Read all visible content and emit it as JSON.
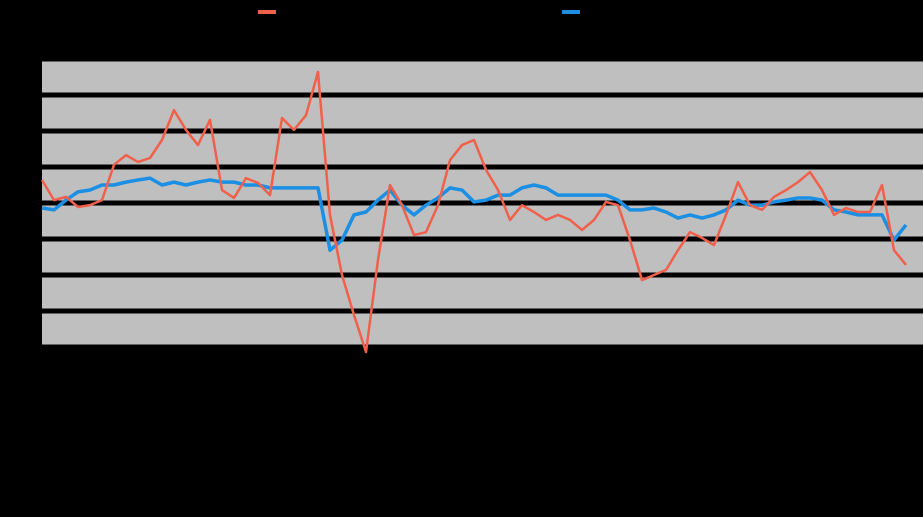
{
  "chart_data": {
    "type": "line",
    "x": [
      0,
      1,
      2,
      3,
      4,
      5,
      6,
      7,
      8,
      9,
      10,
      11,
      12,
      13,
      14,
      15,
      16,
      17,
      18,
      19,
      20,
      21,
      22,
      23,
      24,
      25,
      26,
      27,
      28,
      29,
      30,
      31,
      32,
      33,
      34,
      35,
      36,
      37,
      38,
      39,
      40,
      41,
      42,
      43,
      44,
      45,
      46,
      47,
      48,
      49,
      50,
      51,
      52,
      53,
      54,
      55,
      56,
      57,
      58,
      59,
      60,
      61,
      62,
      63,
      64,
      65,
      66,
      67,
      68,
      69,
      70,
      71,
      72
    ],
    "xlim": [
      0,
      72
    ],
    "ylim": [
      -4,
      4
    ],
    "yticks": [
      -4,
      -3,
      -2,
      -1,
      0,
      1,
      2,
      3,
      4
    ],
    "grid": true,
    "series": [
      {
        "color": "#f0604a",
        "values": [
          0.64,
          0.08,
          0.17,
          -0.11,
          -0.06,
          0.08,
          1.06,
          1.33,
          1.14,
          1.25,
          1.75,
          2.58,
          2.03,
          1.61,
          2.31,
          0.36,
          0.14,
          0.69,
          0.56,
          0.22,
          2.36,
          2.03,
          2.44,
          3.64,
          -0.33,
          -2.0,
          -3.11,
          -4.14,
          -1.58,
          0.5,
          -0.06,
          -0.89,
          -0.81,
          -0.06,
          1.19,
          1.61,
          1.75,
          0.92,
          0.36,
          -0.47,
          -0.06,
          -0.25,
          -0.47,
          -0.33,
          -0.47,
          -0.75,
          -0.47,
          0.03,
          -0.06,
          -1.03,
          -2.14,
          -2.0,
          -1.86,
          -1.31,
          -0.81,
          -0.97,
          -1.17,
          -0.33,
          0.58,
          -0.06,
          -0.19,
          0.17,
          0.36,
          0.58,
          0.86,
          0.36,
          -0.33,
          -0.14,
          -0.25,
          -0.25,
          0.5,
          -1.31,
          -1.72
        ]
      },
      {
        "color": "#1a8fe3",
        "values": [
          -0.14,
          -0.19,
          0.08,
          0.31,
          0.36,
          0.5,
          0.5,
          0.58,
          0.64,
          0.69,
          0.5,
          0.58,
          0.5,
          0.58,
          0.64,
          0.58,
          0.58,
          0.5,
          0.5,
          0.42,
          0.42,
          0.42,
          0.42,
          0.42,
          -1.31,
          -1.03,
          -0.33,
          -0.25,
          0.08,
          0.36,
          -0.06,
          -0.33,
          -0.06,
          0.14,
          0.42,
          0.36,
          0.03,
          0.08,
          0.22,
          0.22,
          0.42,
          0.5,
          0.42,
          0.22,
          0.22,
          0.22,
          0.22,
          0.22,
          0.08,
          -0.19,
          -0.19,
          -0.14,
          -0.25,
          -0.42,
          -0.33,
          -0.42,
          -0.33,
          -0.19,
          0.08,
          -0.06,
          -0.06,
          0.03,
          0.08,
          0.14,
          0.14,
          0.08,
          -0.19,
          -0.25,
          -0.33,
          -0.33,
          -0.33,
          -1.03,
          -0.61
        ]
      }
    ]
  }
}
